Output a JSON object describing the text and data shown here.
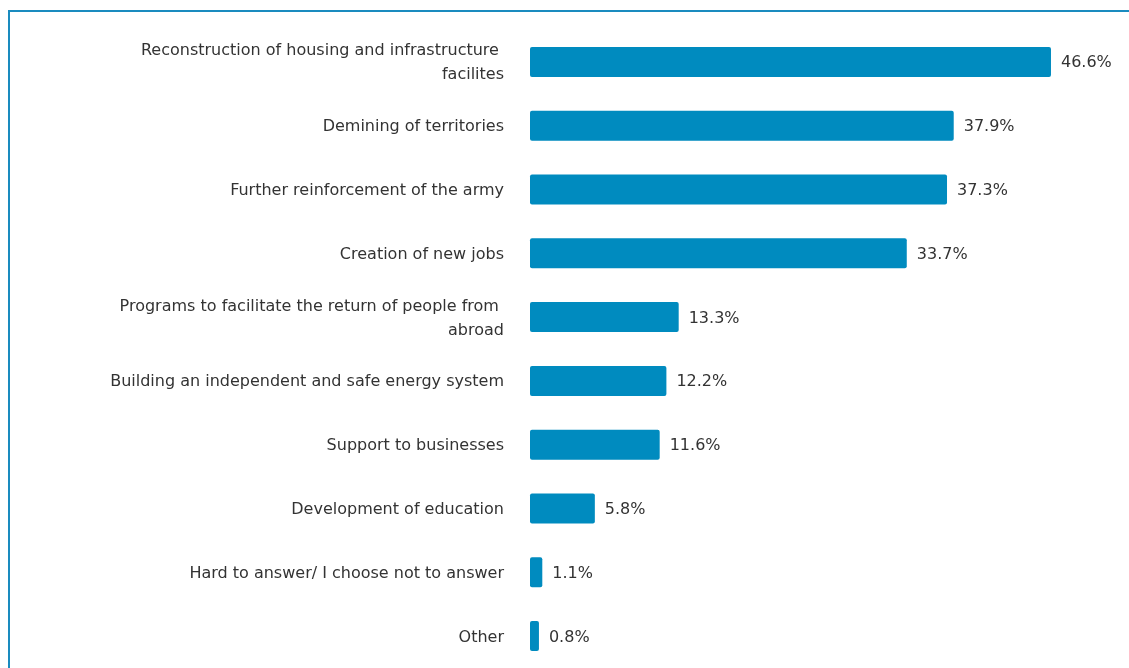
{
  "chart_data": {
    "type": "bar",
    "orientation": "horizontal",
    "categories": [
      "Reconstruction of housing and infrastructure facilites",
      "Demining of territories",
      "Further reinforcement of the army",
      "Creation of new jobs",
      "Programs to facilitate the return of people from abroad",
      "Building an independent and safe energy system",
      "Support to businesses",
      "Development of education",
      "Hard to answer/ I choose not to answer",
      "Other"
    ],
    "values": [
      46.6,
      37.9,
      37.3,
      33.7,
      13.3,
      12.2,
      11.6,
      5.8,
      1.1,
      0.8
    ],
    "value_labels": [
      "46.6%",
      "37.9%",
      "37.3%",
      "33.7%",
      "13.3%",
      "12.2%",
      "11.6%",
      "5.8%",
      "1.1%",
      "0.8%"
    ],
    "color": "#008bbf"
  }
}
